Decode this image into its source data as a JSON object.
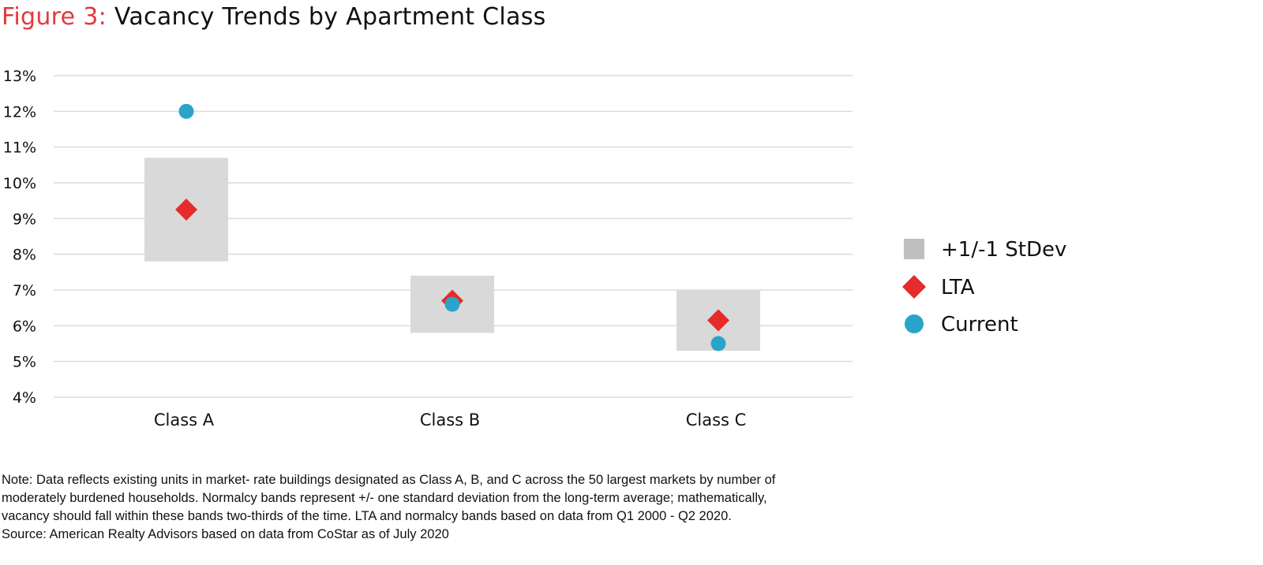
{
  "title": {
    "prefix": "Figure 3:",
    "main": "Vacancy Trends by Apartment Class"
  },
  "chart_data": {
    "type": "scatter",
    "categories": [
      "Class A",
      "Class B",
      "Class C"
    ],
    "ylim": [
      4,
      13
    ],
    "yticks": [
      4,
      5,
      6,
      7,
      8,
      9,
      10,
      11,
      12,
      13
    ],
    "ytick_suffix": "%",
    "grid": true,
    "bands": {
      "name": "+1/-1 StDev",
      "low": [
        7.8,
        5.8,
        5.3
      ],
      "high": [
        10.7,
        7.4,
        7.0
      ]
    },
    "series": [
      {
        "name": "LTA",
        "marker": "diamond",
        "values": [
          9.25,
          6.7,
          6.15
        ]
      },
      {
        "name": "Current",
        "marker": "circle",
        "values": [
          12.0,
          6.6,
          5.5
        ]
      }
    ],
    "legend": {
      "placement": "right",
      "items": [
        {
          "label": "+1/-1 StDev",
          "marker": "square"
        },
        {
          "label": "LTA",
          "marker": "diamond"
        },
        {
          "label": "Current",
          "marker": "circle"
        }
      ]
    }
  },
  "colors": {
    "accent": "#e03a3e",
    "band": "#d9d9d9",
    "legend_square": "#bfbfc1",
    "lta": "#e52b2b",
    "current": "#2aa4c9",
    "grid": "#dcdcdc"
  },
  "note_lines": [
    "Note: Data reflects existing units in market- rate buildings designated as Class A, B, and C across the 50 largest markets by number of",
    "moderately burdened households. Normalcy bands represent +/- one standard deviation from the long-term average; mathematically,",
    "vacancy should fall within these bands two-thirds of the time. LTA and normalcy bands based on data from Q1 2000 - Q2 2020.",
    "Source: American Realty Advisors based on data from CoStar as of July 2020"
  ]
}
